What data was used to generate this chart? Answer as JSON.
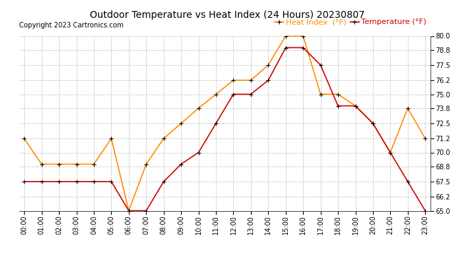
{
  "title": "Outdoor Temperature vs Heat Index (24 Hours) 20230807",
  "copyright": "Copyright 2023 Cartronics.com",
  "legend_heat": "Heat Index  (°F)",
  "legend_temp": "Temperature (°F)",
  "hours": [
    "00:00",
    "01:00",
    "02:00",
    "03:00",
    "04:00",
    "05:00",
    "06:00",
    "07:00",
    "08:00",
    "09:00",
    "10:00",
    "11:00",
    "12:00",
    "13:00",
    "14:00",
    "15:00",
    "16:00",
    "17:00",
    "18:00",
    "19:00",
    "20:00",
    "21:00",
    "22:00",
    "23:00"
  ],
  "heat_index": [
    71.2,
    69.0,
    69.0,
    69.0,
    69.0,
    71.2,
    65.0,
    69.0,
    71.2,
    72.5,
    73.8,
    75.0,
    76.2,
    76.2,
    77.5,
    80.0,
    80.0,
    75.0,
    75.0,
    74.0,
    72.5,
    70.0,
    73.8,
    71.2
  ],
  "temperature": [
    67.5,
    67.5,
    67.5,
    67.5,
    67.5,
    67.5,
    65.0,
    65.0,
    67.5,
    69.0,
    70.0,
    72.5,
    75.0,
    75.0,
    76.2,
    79.0,
    79.0,
    77.5,
    74.0,
    74.0,
    72.5,
    70.0,
    67.5,
    65.0
  ],
  "ylim": [
    65.0,
    80.0
  ],
  "yticks": [
    65.0,
    66.2,
    67.5,
    68.8,
    70.0,
    71.2,
    72.5,
    73.8,
    75.0,
    76.2,
    77.5,
    78.8,
    80.0
  ],
  "heat_color": "#FF8C00",
  "temp_color": "#CC0000",
  "marker_color": "black",
  "grid_color": "#BBBBBB",
  "background_color": "#FFFFFF",
  "title_fontsize": 10,
  "tick_fontsize": 7,
  "legend_fontsize": 8,
  "copyright_fontsize": 7
}
